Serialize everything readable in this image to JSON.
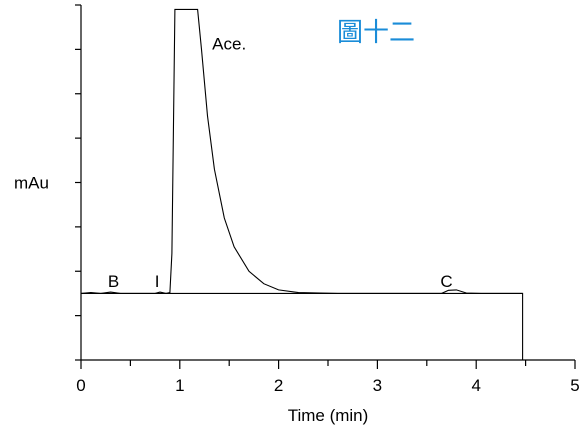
{
  "figure_label": "圖十二",
  "colors": {
    "figure_label": "#1a8cd8",
    "trace": "#000000",
    "axes": "#000000"
  },
  "chart_data": {
    "type": "line",
    "title": "",
    "xlabel": "Time (min)",
    "ylabel": "mAu",
    "xlim": [
      0,
      5
    ],
    "ylim": [
      0,
      8
    ],
    "x_ticks": [
      {
        "value": 0,
        "label": "0"
      },
      {
        "value": 1,
        "label": "1"
      },
      {
        "value": 2,
        "label": "2"
      },
      {
        "value": 3,
        "label": "3"
      },
      {
        "value": 4,
        "label": "4"
      },
      {
        "value": 5,
        "label": "5"
      }
    ],
    "x_minor_ticks": [
      0.5,
      1.5,
      2.5,
      3.5,
      4.5
    ],
    "y_ticks": [
      0,
      1,
      2,
      3,
      4,
      5,
      6,
      7,
      8
    ],
    "grid": false,
    "series": [
      {
        "points": [
          [
            0,
            1.5
          ],
          [
            0.1,
            1.52
          ],
          [
            0.2,
            1.5
          ],
          [
            0.3,
            1.53
          ],
          [
            0.4,
            1.5
          ],
          [
            0.75,
            1.5
          ],
          [
            0.8,
            1.53
          ],
          [
            0.86,
            1.5
          ],
          [
            0.9,
            1.52
          ],
          [
            0.92,
            2.4
          ],
          [
            0.95,
            7.9
          ],
          [
            1.18,
            7.9
          ],
          [
            1.22,
            7.0
          ],
          [
            1.28,
            5.5
          ],
          [
            1.35,
            4.3
          ],
          [
            1.45,
            3.2
          ],
          [
            1.55,
            2.55
          ],
          [
            1.7,
            2.0
          ],
          [
            1.85,
            1.72
          ],
          [
            2.0,
            1.58
          ],
          [
            2.2,
            1.52
          ],
          [
            2.6,
            1.5
          ],
          [
            3.65,
            1.5
          ],
          [
            3.72,
            1.57
          ],
          [
            3.8,
            1.58
          ],
          [
            3.9,
            1.51
          ],
          [
            4.05,
            1.5
          ],
          [
            4.47,
            1.5
          ],
          [
            4.47,
            0
          ]
        ]
      }
    ],
    "baseline": {
      "from": 0,
      "to": 4.47,
      "value": 1.5
    },
    "annotations": [
      {
        "text": "B",
        "x": 0.33,
        "y": 1.65
      },
      {
        "text": "I",
        "x": 0.77,
        "y": 1.65
      },
      {
        "text": "Ace.",
        "x": 1.5,
        "y": 7.0
      },
      {
        "text": "C",
        "x": 3.7,
        "y": 1.65
      }
    ]
  }
}
